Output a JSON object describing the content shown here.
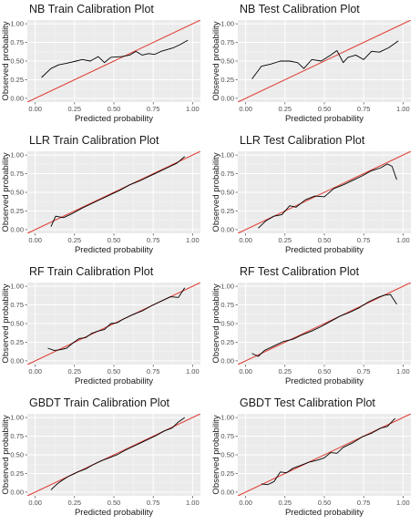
{
  "chart_data": [
    {
      "type": "line",
      "title": "NB Train Calibration Plot",
      "xlabel": "Predicted probability",
      "ylabel": "Observed probability",
      "xlim": [
        0,
        1
      ],
      "ylim": [
        0,
        1
      ],
      "x_ticks": [
        "0.00",
        "0.25",
        "0.50",
        "0.75",
        "1.00"
      ],
      "y_ticks": [
        "0.00",
        "0.25",
        "0.50",
        "0.75",
        "1.00"
      ],
      "reference_line_color": "#e0453c",
      "series_color": "#000000",
      "x": [
        0.04,
        0.1,
        0.15,
        0.2,
        0.26,
        0.3,
        0.35,
        0.4,
        0.44,
        0.48,
        0.55,
        0.6,
        0.64,
        0.68,
        0.72,
        0.76,
        0.8,
        0.88,
        0.92,
        0.97
      ],
      "y": [
        0.28,
        0.4,
        0.45,
        0.47,
        0.5,
        0.52,
        0.5,
        0.56,
        0.48,
        0.55,
        0.56,
        0.58,
        0.63,
        0.58,
        0.6,
        0.59,
        0.63,
        0.68,
        0.72,
        0.78
      ]
    },
    {
      "type": "line",
      "title": "NB Test Calibration Plot",
      "xlabel": "Predicted probability",
      "ylabel": "Observed probability",
      "xlim": [
        0,
        1
      ],
      "ylim": [
        0,
        1
      ],
      "x_ticks": [
        "0.00",
        "0.25",
        "0.50",
        "0.75",
        "1.00"
      ],
      "y_ticks": [
        "0.00",
        "0.25",
        "0.50",
        "0.75",
        "1.00"
      ],
      "reference_line_color": "#e0453c",
      "series_color": "#000000",
      "x": [
        0.04,
        0.1,
        0.16,
        0.22,
        0.28,
        0.33,
        0.37,
        0.42,
        0.48,
        0.54,
        0.58,
        0.62,
        0.65,
        0.7,
        0.75,
        0.8,
        0.85,
        0.91,
        0.97
      ],
      "y": [
        0.26,
        0.43,
        0.46,
        0.5,
        0.5,
        0.48,
        0.4,
        0.52,
        0.5,
        0.58,
        0.64,
        0.48,
        0.55,
        0.58,
        0.52,
        0.63,
        0.62,
        0.68,
        0.77
      ]
    },
    {
      "type": "line",
      "title": "LLR Train Calibration Plot",
      "xlabel": "Predicted probability",
      "ylabel": "Observed probability",
      "xlim": [
        0,
        1
      ],
      "ylim": [
        0,
        1
      ],
      "x_ticks": [
        "0.00",
        "0.25",
        "0.50",
        "0.75",
        "1.00"
      ],
      "y_ticks": [
        "0.00",
        "0.25",
        "0.50",
        "0.75",
        "1.00"
      ],
      "reference_line_color": "#e0453c",
      "series_color": "#000000",
      "x": [
        0.1,
        0.13,
        0.18,
        0.24,
        0.3,
        0.36,
        0.42,
        0.48,
        0.54,
        0.6,
        0.66,
        0.72,
        0.78,
        0.84,
        0.9,
        0.95
      ],
      "y": [
        0.04,
        0.18,
        0.16,
        0.22,
        0.29,
        0.35,
        0.41,
        0.47,
        0.53,
        0.6,
        0.65,
        0.71,
        0.77,
        0.83,
        0.89,
        0.98
      ]
    },
    {
      "type": "line",
      "title": "LLR Test Calibration Plot",
      "xlabel": "Predicted probability",
      "ylabel": "Observed probability",
      "xlim": [
        0,
        1
      ],
      "ylim": [
        0,
        1
      ],
      "x_ticks": [
        "0.00",
        "0.25",
        "0.50",
        "0.75",
        "1.00"
      ],
      "y_ticks": [
        "0.00",
        "0.25",
        "0.50",
        "0.75",
        "1.00"
      ],
      "reference_line_color": "#e0453c",
      "series_color": "#000000",
      "x": [
        0.08,
        0.13,
        0.18,
        0.23,
        0.28,
        0.32,
        0.38,
        0.44,
        0.5,
        0.56,
        0.62,
        0.68,
        0.74,
        0.8,
        0.86,
        0.9,
        0.93,
        0.96
      ],
      "y": [
        0.02,
        0.12,
        0.18,
        0.2,
        0.32,
        0.3,
        0.4,
        0.45,
        0.44,
        0.55,
        0.6,
        0.66,
        0.72,
        0.79,
        0.83,
        0.88,
        0.85,
        0.67
      ]
    },
    {
      "type": "line",
      "title": "RF Train Calibration Plot",
      "xlabel": "Predicted probability",
      "ylabel": "Observed probability",
      "xlim": [
        0,
        1
      ],
      "ylim": [
        0,
        1
      ],
      "x_ticks": [
        "0.00",
        "0.25",
        "0.50",
        "0.75",
        "1.00"
      ],
      "y_ticks": [
        "0.00",
        "0.25",
        "0.50",
        "0.75",
        "1.00"
      ],
      "reference_line_color": "#e0453c",
      "series_color": "#000000",
      "x": [
        0.08,
        0.12,
        0.16,
        0.2,
        0.24,
        0.28,
        0.32,
        0.36,
        0.4,
        0.44,
        0.48,
        0.52,
        0.56,
        0.62,
        0.68,
        0.74,
        0.8,
        0.86,
        0.91,
        0.95
      ],
      "y": [
        0.17,
        0.14,
        0.15,
        0.17,
        0.24,
        0.3,
        0.31,
        0.37,
        0.4,
        0.42,
        0.5,
        0.51,
        0.56,
        0.62,
        0.67,
        0.74,
        0.8,
        0.86,
        0.85,
        0.98
      ]
    },
    {
      "type": "line",
      "title": "RF Test Calibration Plot",
      "xlabel": "Predicted probability",
      "ylabel": "Observed probability",
      "xlim": [
        0,
        1
      ],
      "ylim": [
        0,
        1
      ],
      "x_ticks": [
        "0.00",
        "0.25",
        "0.50",
        "0.75",
        "1.00"
      ],
      "y_ticks": [
        "0.00",
        "0.25",
        "0.50",
        "0.75",
        "1.00"
      ],
      "reference_line_color": "#e0453c",
      "series_color": "#000000",
      "x": [
        0.04,
        0.08,
        0.12,
        0.18,
        0.24,
        0.3,
        0.36,
        0.42,
        0.48,
        0.54,
        0.6,
        0.66,
        0.72,
        0.78,
        0.84,
        0.88,
        0.92,
        0.96
      ],
      "y": [
        0.1,
        0.06,
        0.14,
        0.2,
        0.26,
        0.29,
        0.35,
        0.4,
        0.46,
        0.53,
        0.6,
        0.65,
        0.71,
        0.79,
        0.85,
        0.88,
        0.89,
        0.76
      ]
    },
    {
      "type": "line",
      "title": "GBDT Train Calibration Plot",
      "xlabel": "Predicted probability",
      "ylabel": "Observed probability",
      "xlim": [
        0,
        1
      ],
      "ylim": [
        0,
        1
      ],
      "x_ticks": [
        "0.00",
        "0.25",
        "0.50",
        "0.75",
        "1.00"
      ],
      "y_ticks": [
        "0.00",
        "0.25",
        "0.50",
        "0.75",
        "1.00"
      ],
      "reference_line_color": "#e0453c",
      "series_color": "#000000",
      "x": [
        0.1,
        0.14,
        0.18,
        0.22,
        0.27,
        0.32,
        0.37,
        0.42,
        0.47,
        0.52,
        0.57,
        0.62,
        0.67,
        0.72,
        0.77,
        0.82,
        0.87,
        0.91,
        0.95
      ],
      "y": [
        0.03,
        0.11,
        0.17,
        0.22,
        0.27,
        0.31,
        0.37,
        0.42,
        0.46,
        0.5,
        0.56,
        0.61,
        0.66,
        0.71,
        0.76,
        0.82,
        0.86,
        0.94,
        1.0
      ]
    },
    {
      "type": "line",
      "title": "GBDT Test Calibration Plot",
      "xlabel": "Predicted probability",
      "ylabel": "Observed probability",
      "xlim": [
        0,
        1
      ],
      "ylim": [
        0,
        1
      ],
      "x_ticks": [
        "0.00",
        "0.25",
        "0.50",
        "0.75",
        "1.00"
      ],
      "y_ticks": [
        "0.00",
        "0.25",
        "0.50",
        "0.75",
        "1.00"
      ],
      "reference_line_color": "#e0453c",
      "series_color": "#000000",
      "x": [
        0.1,
        0.14,
        0.18,
        0.22,
        0.26,
        0.3,
        0.34,
        0.4,
        0.46,
        0.5,
        0.54,
        0.58,
        0.62,
        0.68,
        0.74,
        0.8,
        0.86,
        0.9,
        0.95
      ],
      "y": [
        0.11,
        0.1,
        0.14,
        0.27,
        0.26,
        0.32,
        0.35,
        0.4,
        0.43,
        0.46,
        0.53,
        0.52,
        0.6,
        0.66,
        0.74,
        0.79,
        0.86,
        0.88,
        0.99
      ]
    }
  ]
}
